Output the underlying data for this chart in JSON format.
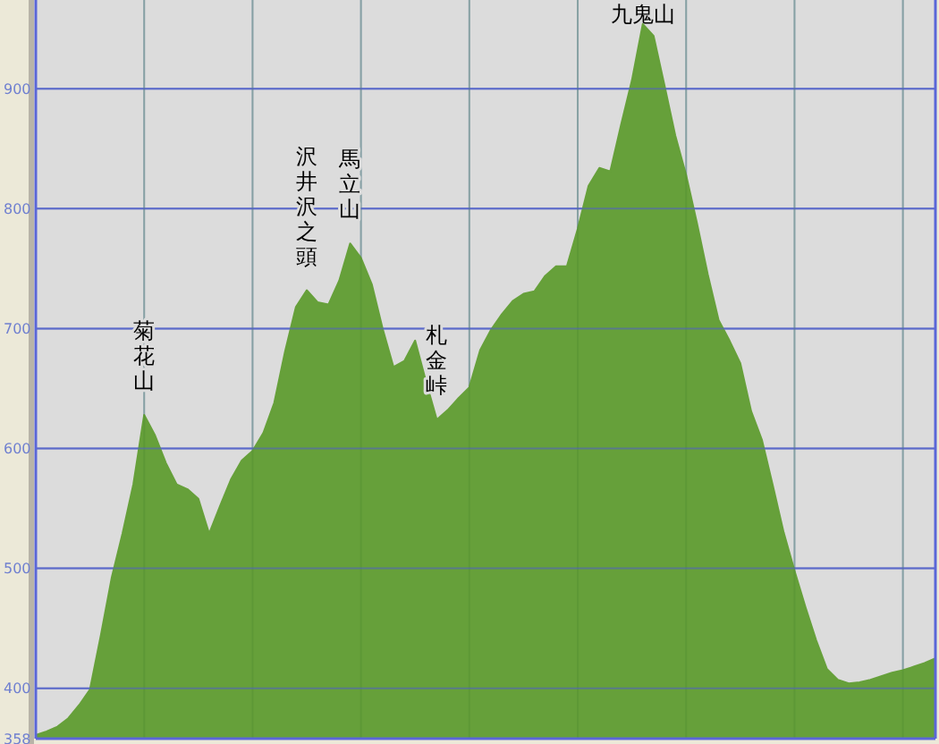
{
  "chart_data": {
    "type": "area",
    "categories": [
      null,
      null,
      null,
      null,
      null,
      null,
      null,
      null,
      null,
      null,
      null,
      null,
      null,
      null,
      null,
      null,
      null,
      null,
      null,
      null,
      null,
      null,
      null,
      null,
      null,
      null,
      null,
      null,
      null,
      null,
      null,
      null,
      null,
      null,
      null,
      null,
      null,
      null,
      null,
      null,
      null,
      null,
      null,
      null,
      null,
      null,
      null,
      null,
      null,
      null,
      null,
      null,
      null,
      null,
      null,
      null,
      null,
      null,
      null,
      null,
      null,
      null,
      null,
      null,
      null,
      null,
      null,
      null,
      null,
      null,
      null,
      null,
      null,
      null,
      null,
      null,
      null,
      null,
      null,
      null,
      null,
      null,
      null,
      null
    ],
    "values": [
      361,
      364,
      368,
      375,
      386,
      399,
      444,
      492,
      529,
      570,
      628,
      611,
      588,
      570,
      566,
      558,
      529,
      552,
      574,
      590,
      598,
      613,
      638,
      681,
      718,
      732,
      722,
      720,
      740,
      771,
      759,
      737,
      700,
      668,
      673,
      690,
      656,
      624,
      632,
      642,
      651,
      682,
      699,
      712,
      723,
      729,
      731,
      744,
      752,
      752,
      783,
      819,
      834,
      831,
      870,
      907,
      954,
      944,
      903,
      861,
      828,
      788,
      745,
      707,
      690,
      671,
      631,
      607,
      569,
      530,
      498,
      468,
      440,
      416,
      407,
      404,
      405,
      407,
      410,
      413,
      415,
      418,
      421,
      425
    ],
    "color": "#66a03a",
    "ylim": [
      358,
      974
    ],
    "yticks": [
      358,
      400,
      500,
      600,
      700,
      800,
      900
    ],
    "tick_labels": "y",
    "grid": true,
    "annotations": [
      {
        "text": "菊花山",
        "y": 628
      },
      {
        "text": "沢井沢之頭",
        "y": 732
      },
      {
        "text": "馬立山",
        "y": 771
      },
      {
        "text": "札金峠",
        "y": 624
      },
      {
        "text": "九鬼山",
        "y": 954
      }
    ]
  }
}
